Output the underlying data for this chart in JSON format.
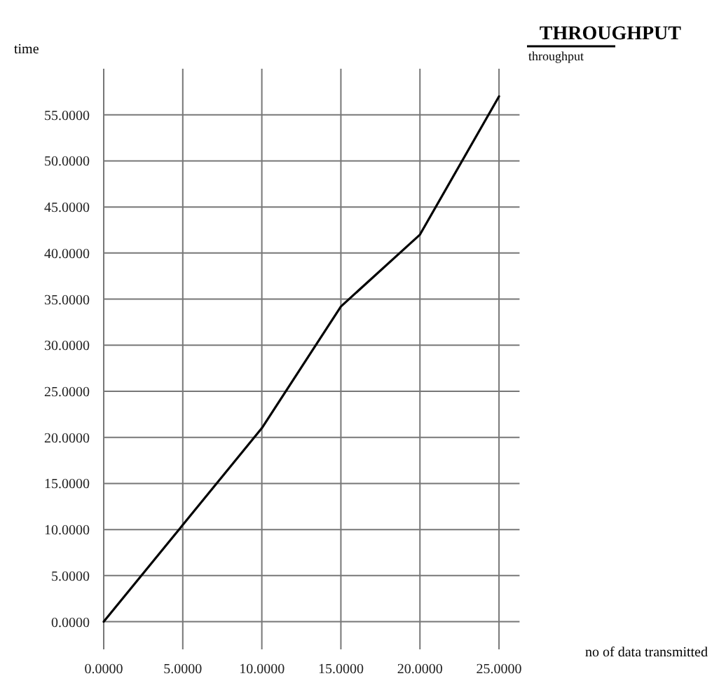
{
  "chart_data": {
    "type": "line",
    "title": "THROUGHPUT",
    "xlabel": "no of data transmitted",
    "ylabel": "time",
    "x": [
      0,
      5,
      10,
      15,
      20,
      25
    ],
    "series": [
      {
        "name": "throughput",
        "color": "#000000",
        "values": [
          0,
          10.5,
          21,
          34.2,
          42,
          57
        ]
      }
    ],
    "xlim": [
      0,
      26.3
    ],
    "ylim": [
      -3,
      60
    ],
    "xticks": [
      {
        "value": 0,
        "label": "0.0000"
      },
      {
        "value": 5,
        "label": "5.0000"
      },
      {
        "value": 10,
        "label": "10.0000"
      },
      {
        "value": 15,
        "label": "15.0000"
      },
      {
        "value": 20,
        "label": "20.0000"
      },
      {
        "value": 25,
        "label": "25.0000"
      }
    ],
    "yticks": [
      {
        "value": 0,
        "label": "0.0000"
      },
      {
        "value": 5,
        "label": "5.0000"
      },
      {
        "value": 10,
        "label": "10.0000"
      },
      {
        "value": 15,
        "label": "15.0000"
      },
      {
        "value": 20,
        "label": "20.0000"
      },
      {
        "value": 25,
        "label": "25.0000"
      },
      {
        "value": 30,
        "label": "30.0000"
      },
      {
        "value": 35,
        "label": "35.0000"
      },
      {
        "value": 40,
        "label": "40.0000"
      },
      {
        "value": 45,
        "label": "45.0000"
      },
      {
        "value": 50,
        "label": "50.0000"
      },
      {
        "value": 55,
        "label": "55.0000"
      }
    ],
    "grid": true,
    "legend": "top right",
    "marker": "none",
    "line_style": "solid"
  }
}
